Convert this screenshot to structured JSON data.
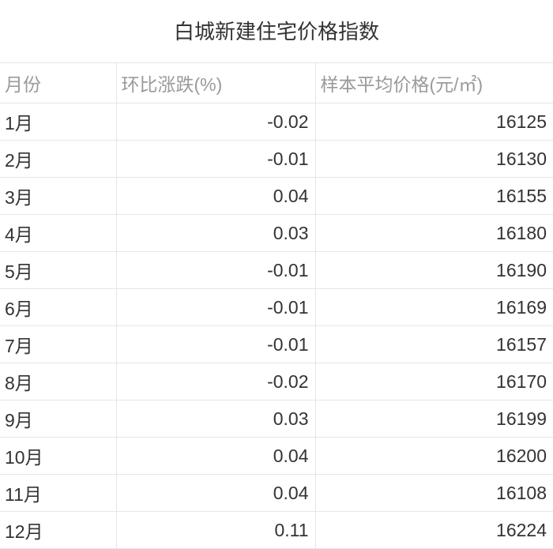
{
  "title": "白城新建住宅价格指数",
  "table": {
    "type": "table",
    "background_color": "#ffffff",
    "grid_color": "#e6e6e6",
    "header_text_color": "#9a9a9a",
    "body_text_color": "#333333",
    "title_fontsize": 26,
    "cell_fontsize": 23,
    "columns": [
      {
        "key": "month",
        "label": "月份",
        "align": "left",
        "width_pct": 21
      },
      {
        "key": "change",
        "label": "环比涨跌(%)",
        "align": "right",
        "width_pct": 36
      },
      {
        "key": "price",
        "label": "样本平均价格(元/㎡)",
        "align": "right",
        "width_pct": 43
      }
    ],
    "rows": [
      {
        "month": "1月",
        "change": "-0.02",
        "price": "16125"
      },
      {
        "month": "2月",
        "change": "-0.01",
        "price": "16130"
      },
      {
        "month": "3月",
        "change": "0.04",
        "price": "16155"
      },
      {
        "month": "4月",
        "change": "0.03",
        "price": "16180"
      },
      {
        "month": "5月",
        "change": "-0.01",
        "price": "16190"
      },
      {
        "month": "6月",
        "change": "-0.01",
        "price": "16169"
      },
      {
        "month": "7月",
        "change": "-0.01",
        "price": "16157"
      },
      {
        "month": "8月",
        "change": "-0.02",
        "price": "16170"
      },
      {
        "month": "9月",
        "change": "0.03",
        "price": "16199"
      },
      {
        "month": "10月",
        "change": "0.04",
        "price": "16200"
      },
      {
        "month": "11月",
        "change": "0.04",
        "price": "16108"
      },
      {
        "month": "12月",
        "change": "0.11",
        "price": "16224"
      }
    ]
  }
}
